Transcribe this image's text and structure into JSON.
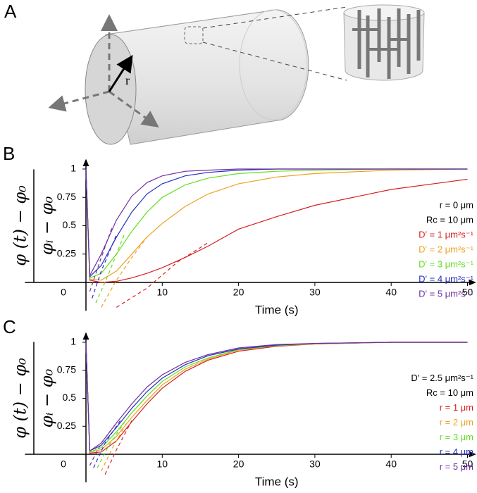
{
  "figure_a": {
    "panel": "A",
    "label": "r"
  },
  "chart_data": [
    {
      "type": "line",
      "panel": "B",
      "ylabel": {
        "numerator": "φ (t) − φ₀",
        "denominator": "φᵢ − φ₀"
      },
      "xlabel": "Time (s)",
      "xlim": [
        -8,
        51
      ],
      "ylim": [
        -0.25,
        1.08
      ],
      "xticks": [
        0,
        10,
        20,
        30,
        40,
        50
      ],
      "yticks": [
        0.25,
        0.5,
        0.75,
        1
      ],
      "annotations": [
        "r = 0 μm",
        "Rc = 10 μm"
      ],
      "series": [
        {
          "name": "D′ = 1 μm²s⁻¹",
          "color": "#d62020",
          "x": [
            0,
            0.5,
            2,
            4,
            6,
            8,
            10,
            13,
            16,
            20,
            25,
            30,
            40,
            50
          ],
          "values": [
            1,
            0.02,
            0.0,
            0.01,
            0.04,
            0.08,
            0.13,
            0.22,
            0.32,
            0.47,
            0.58,
            0.68,
            0.82,
            0.91
          ]
        },
        {
          "name": "D′ = 2 μm²s⁻¹",
          "color": "#f0a020",
          "x": [
            0,
            0.5,
            2,
            4,
            6,
            8,
            10,
            13,
            16,
            20,
            25,
            30,
            40,
            50
          ],
          "values": [
            1,
            0.03,
            0.02,
            0.1,
            0.25,
            0.4,
            0.52,
            0.67,
            0.78,
            0.87,
            0.93,
            0.96,
            0.99,
            1
          ]
        },
        {
          "name": "D′ = 3 μm²s⁻¹",
          "color": "#66dd22",
          "x": [
            0,
            0.5,
            2,
            4,
            6,
            8,
            10,
            13,
            16,
            20,
            25,
            30,
            40,
            50
          ],
          "values": [
            1,
            0.04,
            0.08,
            0.25,
            0.45,
            0.62,
            0.75,
            0.86,
            0.92,
            0.96,
            0.98,
            0.99,
            1,
            1
          ]
        },
        {
          "name": "D′ = 4 μm²s⁻¹",
          "color": "#2030c0",
          "x": [
            0,
            0.5,
            2,
            4,
            6,
            8,
            10,
            13,
            16,
            20,
            25,
            30,
            40,
            50
          ],
          "values": [
            1,
            0.05,
            0.15,
            0.4,
            0.62,
            0.78,
            0.87,
            0.94,
            0.97,
            0.99,
            1,
            1,
            1,
            1
          ]
        },
        {
          "name": "D′ = 5 μm²s⁻¹",
          "color": "#7030a0",
          "x": [
            0,
            0.5,
            2,
            4,
            6,
            8,
            10,
            13,
            16,
            20,
            25,
            30,
            40,
            50
          ],
          "values": [
            1,
            0.06,
            0.25,
            0.55,
            0.76,
            0.88,
            0.94,
            0.98,
            0.99,
            1,
            1,
            1,
            1,
            1
          ]
        },
        {
          "color": "#d62020",
          "dashed": true,
          "x": [
            4,
            8,
            12,
            16
          ],
          "values": [
            -0.22,
            -0.05,
            0.18,
            0.35
          ]
        },
        {
          "color": "#f0a020",
          "dashed": true,
          "x": [
            2,
            4,
            6,
            8
          ],
          "values": [
            -0.22,
            0.02,
            0.22,
            0.4
          ]
        },
        {
          "color": "#66dd22",
          "dashed": true,
          "x": [
            1.3,
            3,
            5
          ],
          "values": [
            -0.18,
            0.08,
            0.42
          ]
        },
        {
          "color": "#2030c0",
          "dashed": true,
          "x": [
            0.8,
            2,
            4
          ],
          "values": [
            -0.14,
            0.1,
            0.42
          ]
        },
        {
          "color": "#7030a0",
          "dashed": true,
          "x": [
            0.5,
            2,
            3.5
          ],
          "values": [
            -0.08,
            0.22,
            0.5
          ]
        }
      ]
    },
    {
      "type": "line",
      "panel": "C",
      "ylabel": {
        "numerator": "φ (t) − φ₀",
        "denominator": "φᵢ − φ₀"
      },
      "xlabel": "Time (s)",
      "xlim": [
        -8,
        51
      ],
      "ylim": [
        -0.25,
        1.08
      ],
      "xticks": [
        0,
        10,
        20,
        30,
        40,
        50
      ],
      "yticks": [
        0.25,
        0.5,
        0.75,
        1
      ],
      "annotations": [
        "D′ = 2.5 μm²s⁻¹",
        "Rc = 10 μm"
      ],
      "series": [
        {
          "name": "r = 1 μm",
          "color": "#d62020",
          "x": [
            0,
            0.5,
            2,
            4,
            6,
            8,
            10,
            13,
            16,
            20,
            25,
            30,
            40,
            50
          ],
          "values": [
            1,
            0.01,
            0.02,
            0.12,
            0.29,
            0.45,
            0.59,
            0.74,
            0.84,
            0.92,
            0.965,
            0.985,
            1,
            1
          ]
        },
        {
          "name": "r = 2 μm",
          "color": "#f0a020",
          "x": [
            0,
            0.5,
            2,
            4,
            6,
            8,
            10,
            13,
            16,
            20,
            25,
            30,
            40,
            50
          ],
          "values": [
            1,
            0.02,
            0.04,
            0.16,
            0.33,
            0.48,
            0.62,
            0.76,
            0.85,
            0.93,
            0.97,
            0.985,
            1,
            1
          ]
        },
        {
          "name": "r = 3 μm",
          "color": "#66dd22",
          "x": [
            0,
            0.5,
            2,
            4,
            6,
            8,
            10,
            13,
            16,
            20,
            25,
            30,
            40,
            50
          ],
          "values": [
            1,
            0.02,
            0.06,
            0.2,
            0.37,
            0.52,
            0.65,
            0.78,
            0.86,
            0.935,
            0.97,
            0.99,
            1,
            1
          ]
        },
        {
          "name": "r = 4 μm",
          "color": "#2030c0",
          "x": [
            0,
            0.5,
            2,
            4,
            6,
            8,
            10,
            13,
            16,
            20,
            25,
            30,
            40,
            50
          ],
          "values": [
            1,
            0.03,
            0.08,
            0.24,
            0.41,
            0.56,
            0.68,
            0.8,
            0.88,
            0.94,
            0.975,
            0.99,
            1,
            1
          ]
        },
        {
          "name": "r = 5 μm",
          "color": "#7030a0",
          "x": [
            0,
            0.5,
            2,
            4,
            6,
            8,
            10,
            13,
            16,
            20,
            25,
            30,
            40,
            50
          ],
          "values": [
            1,
            0.03,
            0.1,
            0.28,
            0.45,
            0.6,
            0.71,
            0.82,
            0.89,
            0.95,
            0.98,
            0.99,
            1,
            1
          ]
        },
        {
          "color": "#d62020",
          "dashed": true,
          "x": [
            2.5,
            4,
            6
          ],
          "values": [
            -0.18,
            0.04,
            0.3
          ]
        },
        {
          "color": "#f0a020",
          "dashed": true,
          "x": [
            2,
            3.5,
            5.5
          ],
          "values": [
            -0.15,
            0.06,
            0.3
          ]
        },
        {
          "color": "#66dd22",
          "dashed": true,
          "x": [
            1.5,
            3,
            5
          ],
          "values": [
            -0.12,
            0.08,
            0.28
          ]
        },
        {
          "color": "#2030c0",
          "dashed": true,
          "x": [
            1,
            2.5,
            4.5
          ],
          "values": [
            -0.12,
            0.1,
            0.3
          ]
        },
        {
          "color": "#7030a0",
          "dashed": true,
          "x": [
            0.5,
            2,
            4
          ],
          "values": [
            -0.1,
            0.1,
            0.28
          ]
        }
      ]
    }
  ]
}
